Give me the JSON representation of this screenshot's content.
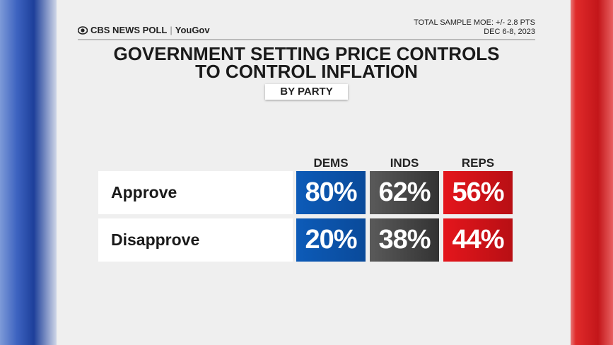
{
  "header": {
    "logo": "CBS NEWS POLL",
    "partner": "YouGov",
    "moe": "TOTAL SAMPLE MOE: +/- 2.8 PTS",
    "date": "DEC 6-8, 2023"
  },
  "title": [
    "GOVERNMENT SETTING PRICE CONTROLS",
    "TO CONTROL INFLATION"
  ],
  "subtitle": "BY PARTY",
  "table": {
    "columns": [
      "DEMS",
      "INDS",
      "REPS"
    ],
    "rows": [
      {
        "label": "Approve",
        "cells": [
          "80%",
          "62%",
          "56%"
        ]
      },
      {
        "label": "Disapprove",
        "cells": [
          "20%",
          "38%",
          "44%"
        ]
      }
    ]
  }
}
